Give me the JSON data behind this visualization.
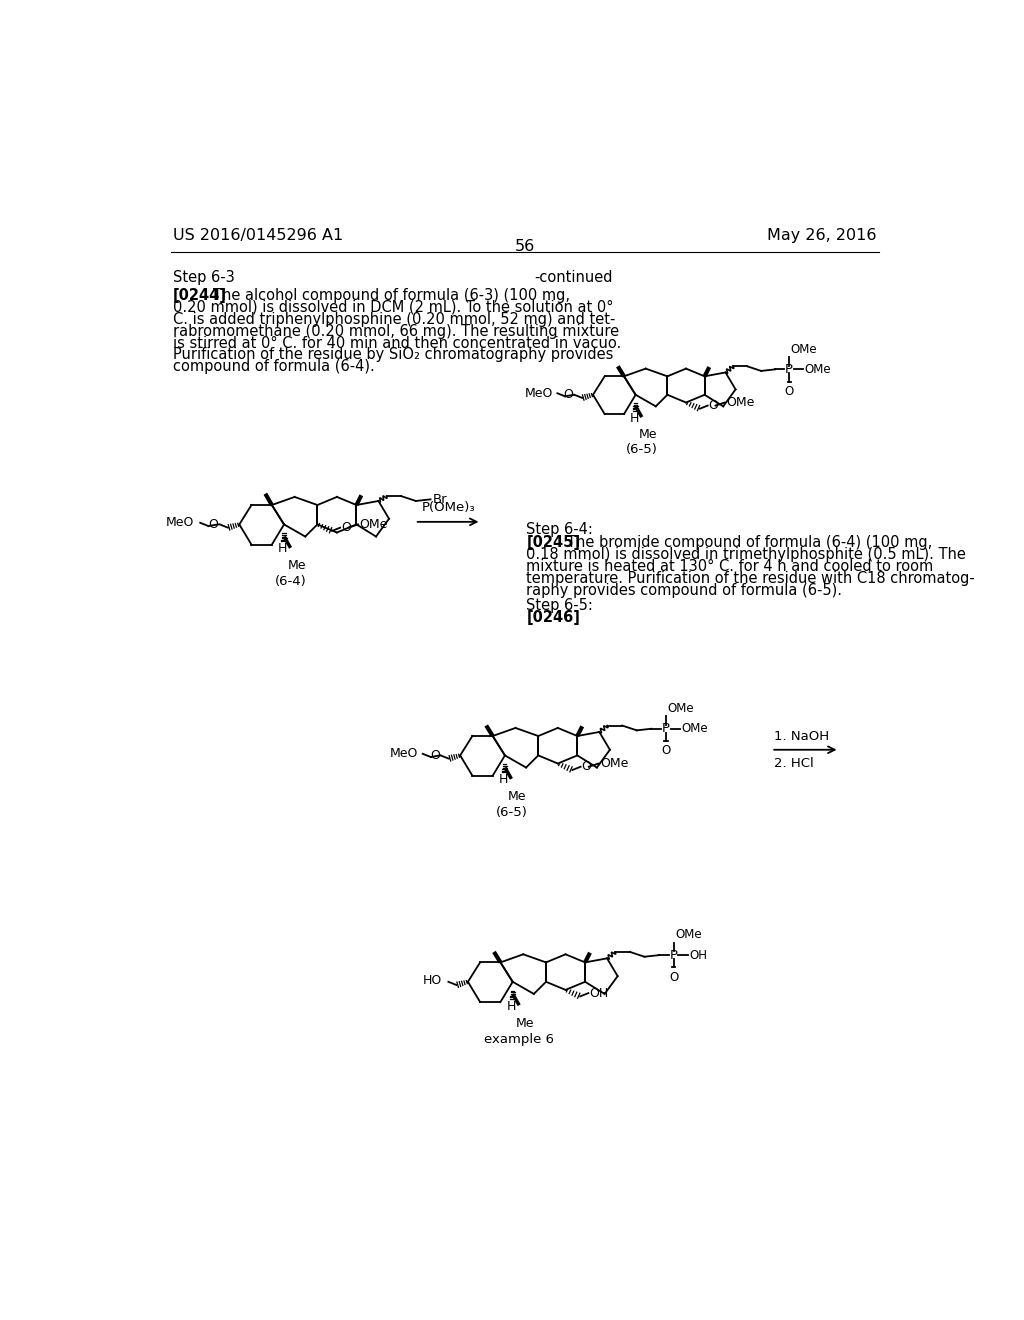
{
  "background_color": "#ffffff",
  "header_left": "US 2016/0145296 A1",
  "header_right": "May 26, 2016",
  "page_number": "56",
  "continued_label": "-continued",
  "step_63": "Step 6-3",
  "step_64": "Step 6-4:",
  "step_65": "Step 6-5:",
  "para_244_bold": "[0244]",
  "para_244_text": "    The alcohol compound of formula (6-3) (100 mg,\n0.20 mmol) is dissolved in DCM (2 mL). To the solution at 0°\nC. is added triphenylphosphine (0.20 mmol, 52 mg) and tet-\nrabromomethane (0.20 mmol, 66 mg). The resulting mixture\nis stirred at 0° C. for 40 min and then concentrated in vacuo.\nPurification of the residue by SiO₂ chromatography provides\ncompound of formula (6-4).",
  "para_245_bold": "[0245]",
  "para_245_text": "    The bromide compound of formula (6-4) (100 mg,\n0.18 mmol) is dissolved in trimethylphosphite (0.5 mL). The\nmixture is heated at 130° C. for 4 h and cooled to room\ntemperature. Purification of the residue with C18 chromatog-\nraphy provides compound of formula (6-5).",
  "para_246_bold": "[0246]",
  "label_64": "(6-4)",
  "label_65a": "(6-5)",
  "label_65b": "(6-5)",
  "label_ex6": "example 6",
  "arrow1_label": "P(OMe)₃",
  "arrow2_label1": "1. NaOH",
  "arrow2_label2": "2. HCl",
  "lh": 15.5,
  "fontsize_body": 10.5,
  "fontsize_chem": 8.5,
  "fontsize_label": 9.5
}
